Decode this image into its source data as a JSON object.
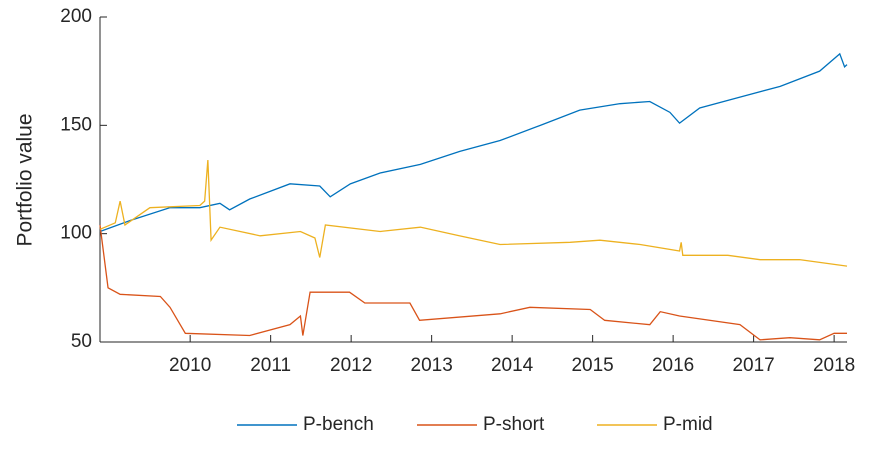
{
  "chart_data": {
    "type": "line",
    "ylabel": "Portfolio value",
    "xlim": [
      2008.88,
      2018.16
    ],
    "xticks": [
      2010,
      2011,
      2012,
      2013,
      2014,
      2015,
      2016,
      2017,
      2018
    ],
    "ylim": [
      50,
      200
    ],
    "yticks": [
      50,
      100,
      150,
      200
    ],
    "series": [
      {
        "name": "P-bench",
        "color": "#0072bd",
        "x": [
          2008.88,
          2009.25,
          2009.75,
          2010.12,
          2010.37,
          2010.49,
          2010.74,
          2011.24,
          2011.61,
          2011.74,
          2011.99,
          2012.36,
          2012.86,
          2013.35,
          2013.85,
          2014.35,
          2014.84,
          2015.34,
          2015.71,
          2015.96,
          2016.08,
          2016.33,
          2016.83,
          2017.33,
          2017.82,
          2018.07,
          2018.13,
          2018.16
        ],
        "values": [
          101,
          106,
          112,
          112,
          114,
          111,
          116,
          123,
          122,
          117,
          123,
          128,
          132,
          138,
          143,
          150,
          157,
          160,
          161,
          156,
          151,
          158,
          163,
          168,
          175,
          183,
          177,
          178
        ]
      },
      {
        "name": "P-short",
        "color": "#d95319",
        "x": [
          2008.88,
          2008.98,
          2009.13,
          2009.63,
          2009.75,
          2009.94,
          2010.74,
          2011.24,
          2011.37,
          2011.4,
          2011.49,
          2011.98,
          2012.17,
          2012.73,
          2012.85,
          2013.85,
          2014.22,
          2014.97,
          2015.15,
          2015.71,
          2015.84,
          2016.08,
          2016.83,
          2017.08,
          2017.45,
          2017.82,
          2018.0,
          2018.16
        ],
        "values": [
          104,
          75,
          72,
          71,
          66,
          54,
          53,
          58,
          62,
          53,
          73,
          73,
          68,
          68,
          60,
          63,
          66,
          65,
          60,
          58,
          64,
          62,
          58,
          51,
          52,
          51,
          54,
          54
        ]
      },
      {
        "name": "P-mid",
        "color": "#edb120",
        "x": [
          2008.88,
          2009.07,
          2009.13,
          2009.19,
          2009.5,
          2010.12,
          2010.18,
          2010.22,
          2010.26,
          2010.37,
          2010.87,
          2011.37,
          2011.55,
          2011.61,
          2011.68,
          2012.36,
          2012.86,
          2013.35,
          2013.85,
          2014.72,
          2015.09,
          2015.59,
          2016.08,
          2016.1,
          2016.12,
          2016.68,
          2017.08,
          2017.57,
          2018.16
        ],
        "values": [
          102,
          105,
          115,
          104,
          112,
          113,
          115,
          134,
          97,
          103,
          99,
          101,
          98,
          89,
          104,
          101,
          103,
          99,
          95,
          96,
          97,
          95,
          92,
          96,
          90,
          90,
          88,
          88,
          85
        ]
      }
    ]
  }
}
